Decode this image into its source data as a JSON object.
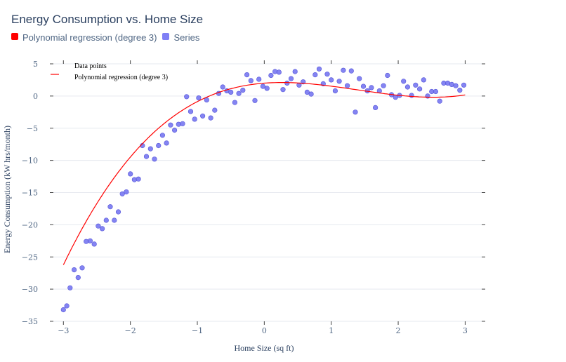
{
  "chart_data": {
    "type": "scatter",
    "title": "Energy Consumption vs. Home Size",
    "xlabel": "Home Size (sq ft)",
    "ylabel": "Energy Consumption (kW hrs/month)",
    "xlim": [
      -3.15,
      3.3
    ],
    "ylim": [
      -35,
      5
    ],
    "xticks": [
      -3,
      -2,
      -1,
      0,
      1,
      2,
      3
    ],
    "yticks": [
      5,
      0,
      -5,
      -10,
      -15,
      -20,
      -25,
      -30,
      -35
    ],
    "xtick_labels": [
      "−3",
      "−2",
      "−1",
      "0",
      "1",
      "2",
      "3"
    ],
    "ytick_labels": [
      "5",
      "0",
      "−5",
      "−10",
      "−15",
      "−20",
      "−25",
      "−30",
      "−35"
    ],
    "grid": true,
    "top_legend": [
      {
        "label": "Polynomial regression (degree 3)",
        "color": "#ff0000"
      },
      {
        "label": "Series",
        "color": "#7f7ff5"
      }
    ],
    "inner_legend": [
      {
        "label": "Data points"
      },
      {
        "label": "Polynomial regression (degree 3)",
        "color": "#ff0000"
      }
    ],
    "series": [
      {
        "name": "Data points",
        "color": "#6f6ff0",
        "x": [
          -3.0,
          -2.95,
          -2.9,
          -2.84,
          -2.78,
          -2.72,
          -2.66,
          -2.6,
          -2.54,
          -2.48,
          -2.42,
          -2.36,
          -2.3,
          -2.24,
          -2.18,
          -2.12,
          -2.06,
          -2.0,
          -1.94,
          -1.88,
          -1.82,
          -1.76,
          -1.7,
          -1.64,
          -1.58,
          -1.52,
          -1.46,
          -1.4,
          -1.34,
          -1.28,
          -1.22,
          -1.16,
          -1.1,
          -1.04,
          -0.98,
          -0.92,
          -0.86,
          -0.8,
          -0.74,
          -0.68,
          -0.62,
          -0.56,
          -0.5,
          -0.44,
          -0.38,
          -0.32,
          -0.26,
          -0.2,
          -0.14,
          -0.08,
          -0.02,
          0.04,
          0.1,
          0.16,
          0.22,
          0.28,
          0.34,
          0.4,
          0.46,
          0.52,
          0.58,
          0.64,
          0.7,
          0.76,
          0.82,
          0.88,
          0.94,
          1.0,
          1.06,
          1.12,
          1.18,
          1.24,
          1.3,
          1.36,
          1.42,
          1.48,
          1.54,
          1.6,
          1.66,
          1.72,
          1.78,
          1.84,
          1.9,
          1.96,
          2.02,
          2.08,
          2.14,
          2.2,
          2.26,
          2.32,
          2.38,
          2.44,
          2.5,
          2.56,
          2.62,
          2.68,
          2.74,
          2.8,
          2.86,
          2.92,
          2.98
        ],
        "y": [
          -33.2,
          -32.6,
          -29.8,
          -27.0,
          -28.2,
          -26.7,
          -22.6,
          -22.5,
          -23.0,
          -20.2,
          -20.6,
          -19.3,
          -17.2,
          -19.3,
          -18.0,
          -15.2,
          -14.9,
          -12.1,
          -13.0,
          -12.9,
          -7.7,
          -9.4,
          -8.2,
          -9.8,
          -7.7,
          -6.1,
          -7.3,
          -4.5,
          -5.3,
          -4.4,
          -4.3,
          -0.1,
          -2.4,
          -3.6,
          -0.3,
          -3.1,
          -0.6,
          -3.4,
          -2.2,
          0.4,
          1.4,
          0.8,
          0.6,
          -1.0,
          0.4,
          0.9,
          3.3,
          2.4,
          -0.7,
          2.6,
          1.5,
          1.2,
          3.2,
          3.8,
          3.7,
          1.0,
          2.0,
          2.7,
          3.8,
          1.7,
          2.2,
          0.6,
          0.3,
          3.3,
          4.2,
          1.9,
          3.4,
          2.5,
          0.8,
          2.3,
          4.0,
          1.6,
          3.9,
          -2.5,
          2.7,
          1.5,
          0.8,
          1.3,
          -1.8,
          0.8,
          1.6,
          3.2,
          0.2,
          -0.2,
          0.1,
          2.3,
          1.4,
          0.1,
          1.7,
          1.1,
          2.5,
          0.0,
          0.7,
          0.7,
          -0.8,
          2.0,
          2.0,
          1.8,
          1.6,
          0.9,
          1.7
        ]
      },
      {
        "name": "Polynomial regression (degree 3)",
        "color": "#ff0000",
        "coefficients": [
          2.0,
          0.8,
          -1.67,
          0.4
        ],
        "x_range": [
          -3.0,
          3.0
        ]
      }
    ]
  }
}
